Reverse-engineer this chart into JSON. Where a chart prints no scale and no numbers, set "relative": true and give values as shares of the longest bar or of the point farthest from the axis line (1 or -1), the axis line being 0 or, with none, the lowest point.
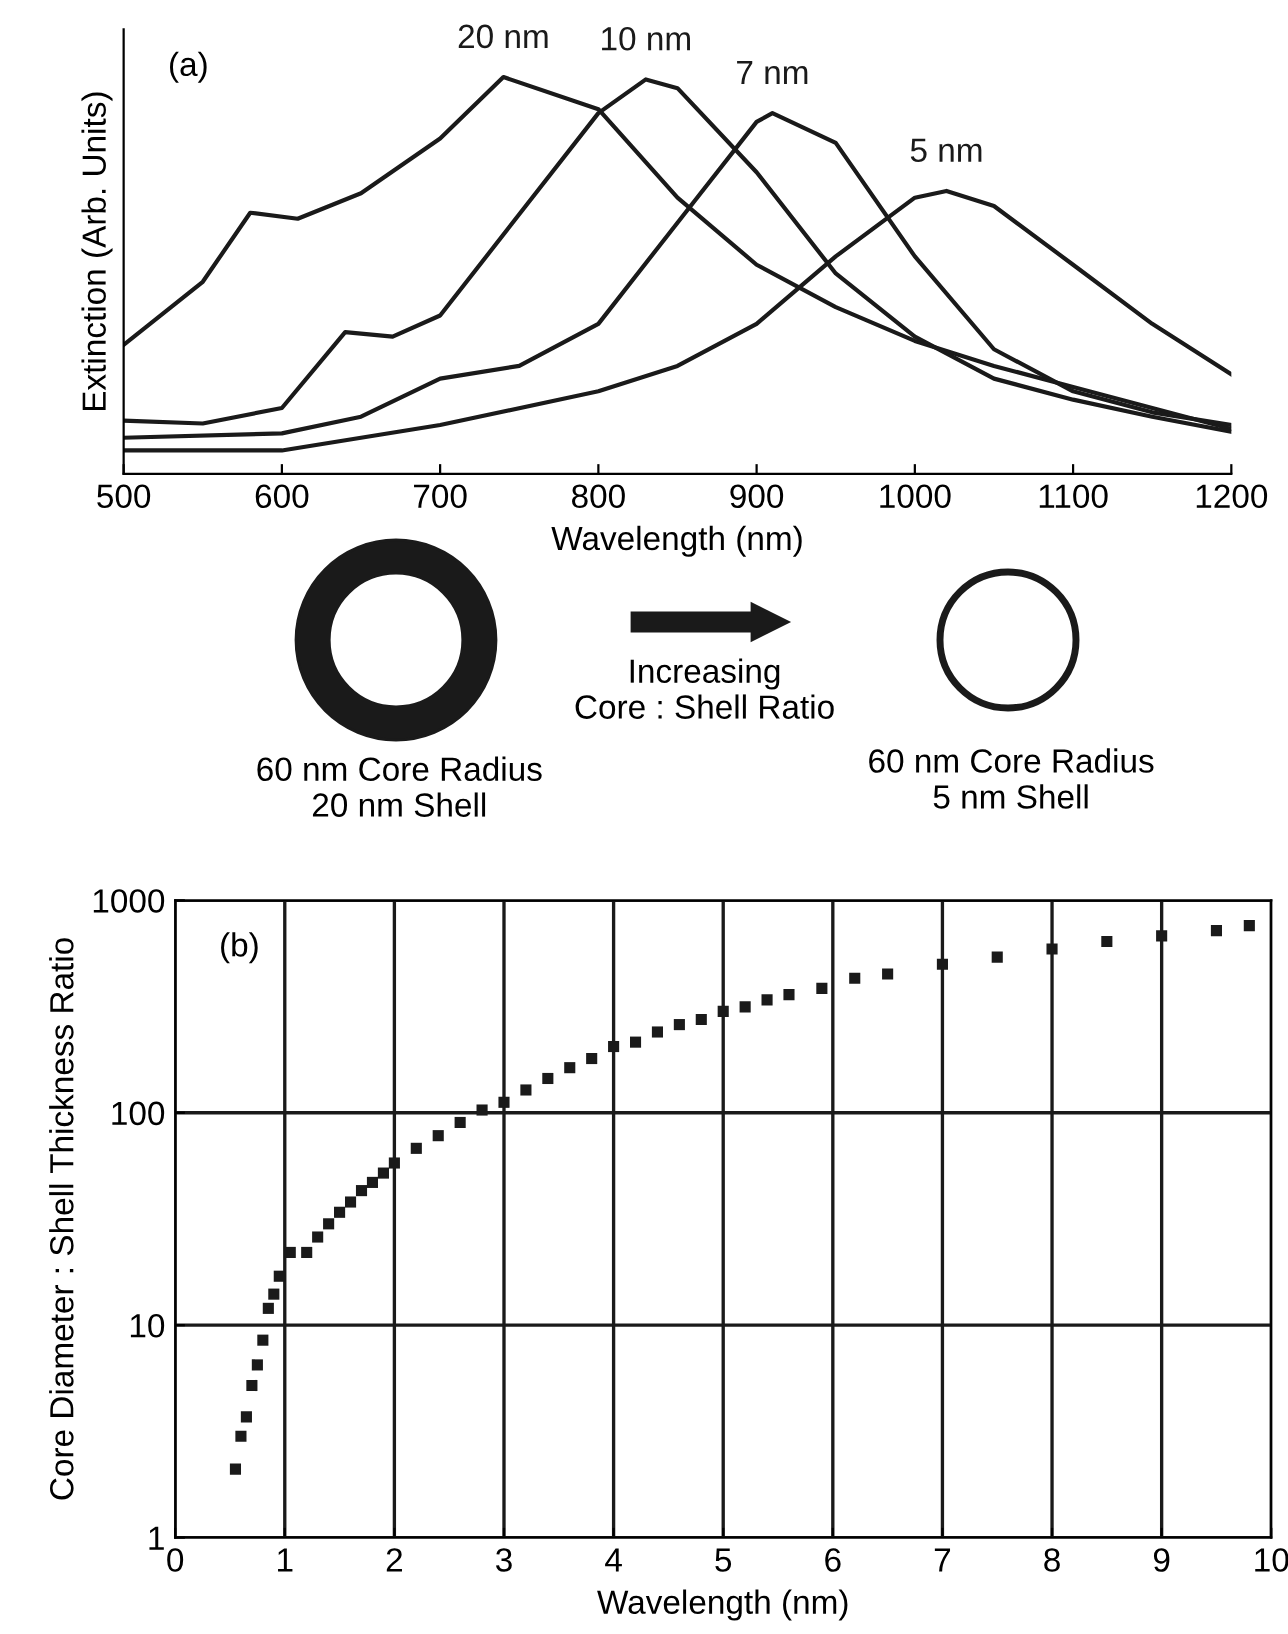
{
  "chart_data": [
    {
      "type": "line",
      "relative": true,
      "xlabel": "Wavelength (nm)",
      "ylabel": "Extinction (Arb. Units)",
      "xlim": [
        500,
        1200
      ],
      "xticks": [
        500,
        600,
        700,
        800,
        900,
        1000,
        1100,
        1200
      ],
      "grid": false,
      "legend": false,
      "marker": "none",
      "line_style": "solid",
      "annotations": [
        "(a)",
        "Increasing\nCore : Shell Ratio",
        "60 nm Core Radius\n20 nm Shell",
        "60 nm Core Radius\n5 nm Shell"
      ],
      "series": [
        {
          "name": "20 nm",
          "color": "#1a1a1a",
          "x": [
            500,
            550,
            580,
            610,
            650,
            700,
            740,
            800,
            850,
            900,
            950,
            1000,
            1050,
            1100,
            1150,
            1200
          ],
          "values": [
            0.325,
            0.484,
            0.658,
            0.643,
            0.707,
            0.845,
            1.0,
            0.919,
            0.696,
            0.527,
            0.42,
            0.335,
            0.272,
            0.219,
            0.166,
            0.113
          ]
        },
        {
          "name": "10 nm",
          "color": "#1a1a1a",
          "x": [
            500,
            550,
            600,
            640,
            670,
            700,
            750,
            800,
            830,
            850,
            900,
            950,
            1000,
            1050,
            1100,
            1150,
            1200
          ],
          "values": [
            0.134,
            0.127,
            0.166,
            0.357,
            0.346,
            0.399,
            0.654,
            0.909,
            0.994,
            0.972,
            0.76,
            0.505,
            0.346,
            0.24,
            0.187,
            0.144,
            0.106
          ]
        },
        {
          "name": "7 nm",
          "color": "#1a1a1a",
          "x": [
            500,
            600,
            650,
            700,
            750,
            800,
            850,
            900,
            910,
            950,
            1000,
            1050,
            1100,
            1150,
            1200
          ],
          "values": [
            0.091,
            0.102,
            0.144,
            0.24,
            0.272,
            0.378,
            0.633,
            0.887,
            0.909,
            0.834,
            0.548,
            0.314,
            0.208,
            0.155,
            0.123
          ]
        },
        {
          "name": "5 nm",
          "color": "#1a1a1a",
          "x": [
            500,
            600,
            700,
            800,
            850,
            900,
            950,
            1000,
            1020,
            1050,
            1100,
            1150,
            1200
          ],
          "values": [
            0.059,
            0.059,
            0.123,
            0.208,
            0.272,
            0.378,
            0.548,
            0.696,
            0.713,
            0.675,
            0.527,
            0.378,
            0.251
          ]
        }
      ]
    },
    {
      "type": "scatter",
      "xlabel": "Wavelength (nm)",
      "ylabel": "Core Diameter : Shell Thickness Ratio",
      "log": "y",
      "xlim": [
        0,
        10
      ],
      "xticks": [
        0,
        1,
        2,
        3,
        4,
        5,
        6,
        7,
        8,
        9,
        10
      ],
      "ylim": [
        1,
        1000
      ],
      "yticks": [
        1,
        10,
        100,
        1000
      ],
      "grid": true,
      "legend": false,
      "marker": "square",
      "annotations": [
        "(b)"
      ],
      "series": [
        {
          "color": "#1a1a1a",
          "x": [
            0.55,
            0.6,
            0.65,
            0.7,
            0.75,
            0.8,
            0.85,
            0.9,
            0.95,
            1.05,
            1.2,
            1.3,
            1.4,
            1.5,
            1.6,
            1.7,
            1.8,
            1.9,
            2.0,
            2.2,
            2.4,
            2.6,
            2.8,
            3.0,
            3.2,
            3.4,
            3.6,
            3.8,
            4.0,
            4.2,
            4.4,
            4.6,
            4.8,
            5.0,
            5.2,
            5.4,
            5.6,
            5.9,
            6.2,
            6.5,
            7.0,
            7.5,
            8.0,
            8.5,
            9.0,
            9.5,
            9.8
          ],
          "values": [
            2.1,
            3,
            3.7,
            5.2,
            6.5,
            8.5,
            12,
            14,
            17,
            22,
            22,
            26,
            30,
            34,
            38,
            43,
            47,
            52,
            58,
            68,
            78,
            90,
            103,
            112,
            128,
            145,
            163,
            180,
            205,
            215,
            240,
            260,
            275,
            300,
            315,
            340,
            360,
            385,
            430,
            450,
            500,
            540,
            590,
            640,
            680,
            720,
            760
          ]
        }
      ]
    }
  ]
}
